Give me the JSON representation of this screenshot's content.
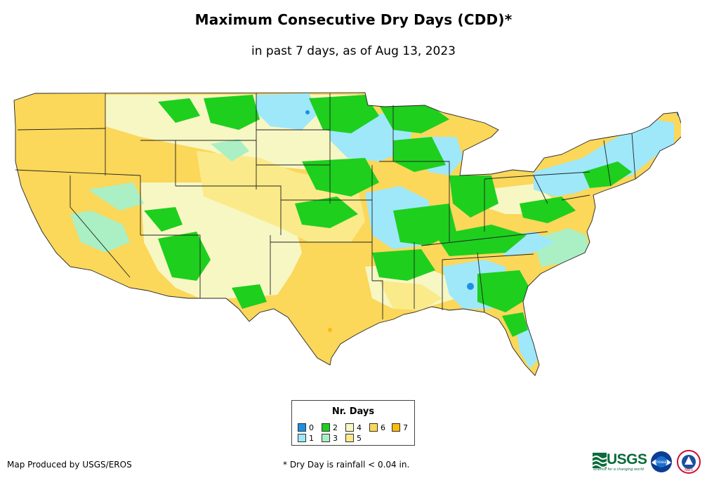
{
  "title": "Maximum Consecutive Dry Days (CDD)*",
  "subtitle": "in past 7 days, as of Aug 13, 2023",
  "legend": {
    "title": "Nr. Days",
    "items": [
      {
        "label": "0",
        "color": "#1e90e0"
      },
      {
        "label": "1",
        "color": "#9ee8fa"
      },
      {
        "label": "2",
        "color": "#1ecf1e"
      },
      {
        "label": "3",
        "color": "#aaf0c4"
      },
      {
        "label": "4",
        "color": "#f7f7c4"
      },
      {
        "label": "5",
        "color": "#fbea8a"
      },
      {
        "label": "6",
        "color": "#fbd75a"
      },
      {
        "label": "7",
        "color": "#f9bb0c"
      }
    ]
  },
  "footer": {
    "producer": "Map Produced by USGS/EROS",
    "note": "* Dry Day is rainfall < 0.04 in."
  },
  "logos": {
    "usgs": "USGS",
    "usgs_tagline": "science for a changing world",
    "noaa": "noaa",
    "nws": "NWS"
  }
}
